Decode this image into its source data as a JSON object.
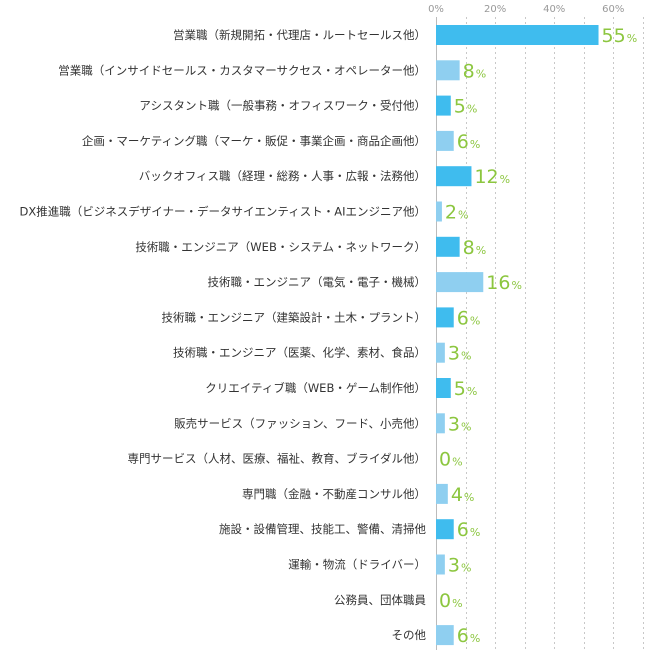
{
  "chart_data": {
    "type": "bar",
    "orientation": "horizontal",
    "categories": [
      "営業職（新規開拓・代理店・ルートセールス他）",
      "営業職（インサイドセールス・カスタマーサクセス・オペレーター他）",
      "アシスタント職（一般事務・オフィスワーク・受付他）",
      "企画・マーケティング職（マーケ・販促・事業企画・商品企画他）",
      "バックオフィス職（経理・総務・人事・広報・法務他）",
      "DX推進職（ビジネスデザイナー・データサイエンティスト・AIエンジニア他）",
      "技術職・エンジニア（WEB・システム・ネットワーク）",
      "技術職・エンジニア（電気・電子・機械）",
      "技術職・エンジニア（建築設計・土木・プラント）",
      "技術職・エンジニア（医薬、化学、素材、食品）",
      "クリエイティブ職（WEB・ゲーム制作他）",
      "販売サービス（ファッション、フード、小売他）",
      "専門サービス（人材、医療、福祉、教育、ブライダル他）",
      "専門職（金融・不動産コンサル他）",
      "施設・設備管理、技能工、警備、清掃他",
      "運輸・物流（ドライバー）",
      "公務員、団体職員",
      "その他"
    ],
    "values": [
      55,
      8,
      5,
      6,
      12,
      2,
      8,
      16,
      6,
      3,
      5,
      3,
      0,
      4,
      6,
      3,
      0,
      6
    ],
    "value_suffix": "%",
    "xticks": [
      "0%",
      "20%",
      "40%",
      "60%"
    ],
    "xlim": [
      0,
      65
    ],
    "grid": true,
    "bar_colors": [
      "#3fbcee",
      "#8fcff0",
      "#3fbcee",
      "#8fcff0",
      "#3fbcee",
      "#8fcff0",
      "#3fbcee",
      "#8fcff0",
      "#3fbcee",
      "#8fcff0",
      "#3fbcee",
      "#8fcff0",
      "#3fbcee",
      "#8fcff0",
      "#3fbcee",
      "#8fcff0",
      "#3fbcee",
      "#8fcff0"
    ],
    "label_color": "#8cc63f"
  }
}
